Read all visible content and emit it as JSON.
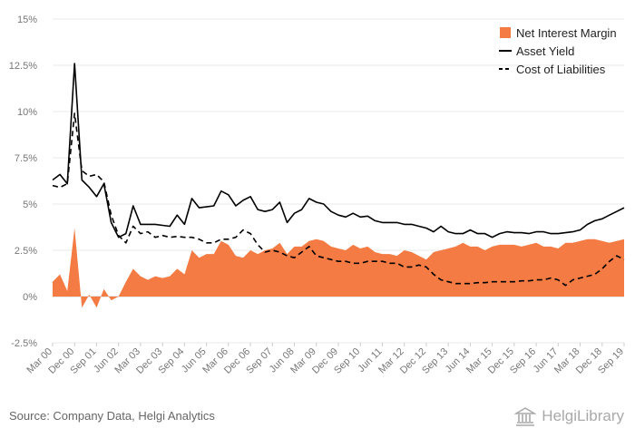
{
  "chart_data": {
    "type": "line",
    "title": "",
    "xlabel": "",
    "ylabel": "",
    "ylim": [
      -2.5,
      15
    ],
    "yticks": [
      "-2.5%",
      "0%",
      "2.5%",
      "5%",
      "7.5%",
      "10%",
      "12.5%",
      "15%"
    ],
    "ytick_values": [
      -2.5,
      0,
      2.5,
      5,
      7.5,
      10,
      12.5,
      15
    ],
    "xticks": [
      "Mar 00",
      "Dec 00",
      "Sep 01",
      "Jun 02",
      "Mar 03",
      "Dec 03",
      "Sep 04",
      "Jun 05",
      "Mar 06",
      "Dec 06",
      "Sep 07",
      "Jun 08",
      "Mar 09",
      "Dec 09",
      "Sep 10",
      "Jun 11",
      "Mar 12",
      "Dec 12",
      "Sep 13",
      "Jun 14",
      "Mar 15",
      "Dec 15",
      "Sep 16",
      "Jun 17",
      "Mar 18",
      "Dec 18",
      "Sep 19"
    ],
    "grid": "horizontal",
    "legend_position": "top-right",
    "x_quarters": [
      "Mar 00",
      "Jun 00",
      "Sep 00",
      "Dec 00",
      "Mar 01",
      "Jun 01",
      "Sep 01",
      "Dec 01",
      "Mar 02",
      "Jun 02",
      "Sep 02",
      "Dec 02",
      "Mar 03",
      "Jun 03",
      "Sep 03",
      "Dec 03",
      "Mar 04",
      "Jun 04",
      "Sep 04",
      "Dec 04",
      "Mar 05",
      "Jun 05",
      "Sep 05",
      "Dec 05",
      "Mar 06",
      "Jun 06",
      "Sep 06",
      "Dec 06",
      "Mar 07",
      "Jun 07",
      "Sep 07",
      "Dec 07",
      "Mar 08",
      "Jun 08",
      "Sep 08",
      "Dec 08",
      "Mar 09",
      "Jun 09",
      "Sep 09",
      "Dec 09",
      "Mar 10",
      "Jun 10",
      "Sep 10",
      "Dec 10",
      "Mar 11",
      "Jun 11",
      "Sep 11",
      "Dec 11",
      "Mar 12",
      "Jun 12",
      "Sep 12",
      "Dec 12",
      "Mar 13",
      "Jun 13",
      "Sep 13",
      "Dec 13",
      "Mar 14",
      "Jun 14",
      "Sep 14",
      "Dec 14",
      "Mar 15",
      "Jun 15",
      "Sep 15",
      "Dec 15",
      "Mar 16",
      "Jun 16",
      "Sep 16",
      "Dec 16",
      "Mar 17",
      "Jun 17",
      "Sep 17",
      "Dec 17",
      "Mar 18",
      "Jun 18",
      "Sep 18",
      "Dec 18",
      "Mar 19",
      "Jun 19",
      "Sep 19"
    ],
    "series": [
      {
        "name": "Net Interest Margin",
        "style": "area",
        "color": "#f47b43",
        "values": [
          0.8,
          1.2,
          0.3,
          3.7,
          -0.6,
          0.1,
          -0.6,
          0.4,
          -0.2,
          0.0,
          0.8,
          1.5,
          1.1,
          0.9,
          1.1,
          1.0,
          1.1,
          1.5,
          1.2,
          2.5,
          2.1,
          2.3,
          2.3,
          3.0,
          2.8,
          2.2,
          2.1,
          2.5,
          2.3,
          2.5,
          2.6,
          2.9,
          2.3,
          2.7,
          2.7,
          3.0,
          3.1,
          3.0,
          2.7,
          2.6,
          2.5,
          2.8,
          2.6,
          2.7,
          2.4,
          2.3,
          2.3,
          2.2,
          2.5,
          2.4,
          2.2,
          2.0,
          2.4,
          2.5,
          2.6,
          2.7,
          2.9,
          2.7,
          2.7,
          2.5,
          2.7,
          2.8,
          2.8,
          2.8,
          2.7,
          2.8,
          2.9,
          2.7,
          2.7,
          2.6,
          2.9,
          2.9,
          3.0,
          3.1,
          3.1,
          3.0,
          2.9,
          3.0,
          3.1
        ]
      },
      {
        "name": "Asset Yield",
        "style": "solid",
        "color": "#000000",
        "values": [
          6.3,
          6.6,
          6.1,
          12.6,
          6.3,
          5.9,
          5.4,
          6.1,
          4.0,
          3.2,
          3.4,
          4.9,
          3.9,
          3.9,
          3.9,
          3.85,
          3.8,
          4.4,
          3.9,
          5.3,
          4.8,
          4.85,
          4.9,
          5.7,
          5.5,
          4.9,
          5.2,
          5.4,
          4.7,
          4.6,
          4.7,
          5.1,
          4.0,
          4.5,
          4.7,
          5.3,
          5.1,
          5.0,
          4.6,
          4.4,
          4.3,
          4.5,
          4.3,
          4.35,
          4.1,
          4.0,
          4.0,
          4.0,
          3.9,
          3.9,
          3.8,
          3.7,
          3.5,
          3.8,
          3.5,
          3.4,
          3.4,
          3.6,
          3.4,
          3.4,
          3.2,
          3.4,
          3.5,
          3.45,
          3.45,
          3.4,
          3.5,
          3.5,
          3.4,
          3.4,
          3.45,
          3.5,
          3.6,
          3.9,
          4.1,
          4.2,
          4.4,
          4.6,
          4.8
        ]
      },
      {
        "name": "Cost of Liabilities",
        "style": "dashed",
        "color": "#000000",
        "values": [
          6.0,
          5.9,
          6.1,
          9.9,
          6.8,
          6.5,
          6.6,
          6.2,
          4.4,
          3.3,
          2.9,
          3.8,
          3.4,
          3.5,
          3.2,
          3.3,
          3.2,
          3.25,
          3.2,
          3.2,
          3.1,
          2.9,
          2.9,
          3.1,
          3.1,
          3.2,
          3.6,
          3.4,
          2.8,
          2.4,
          2.5,
          2.4,
          2.2,
          2.1,
          2.4,
          2.7,
          2.2,
          2.1,
          2.0,
          1.9,
          1.9,
          1.8,
          1.8,
          1.9,
          1.9,
          1.9,
          1.8,
          1.8,
          1.6,
          1.6,
          1.7,
          1.6,
          1.2,
          0.9,
          0.8,
          0.7,
          0.7,
          0.7,
          0.75,
          0.75,
          0.8,
          0.8,
          0.8,
          0.8,
          0.85,
          0.85,
          0.9,
          0.9,
          1.0,
          0.9,
          0.6,
          0.9,
          1.0,
          1.1,
          1.2,
          1.5,
          1.9,
          2.2,
          2.0
        ]
      }
    ]
  },
  "footer": {
    "source": "Source: Company Data, Helgi Analytics",
    "brand": "HelgiLibrary"
  }
}
